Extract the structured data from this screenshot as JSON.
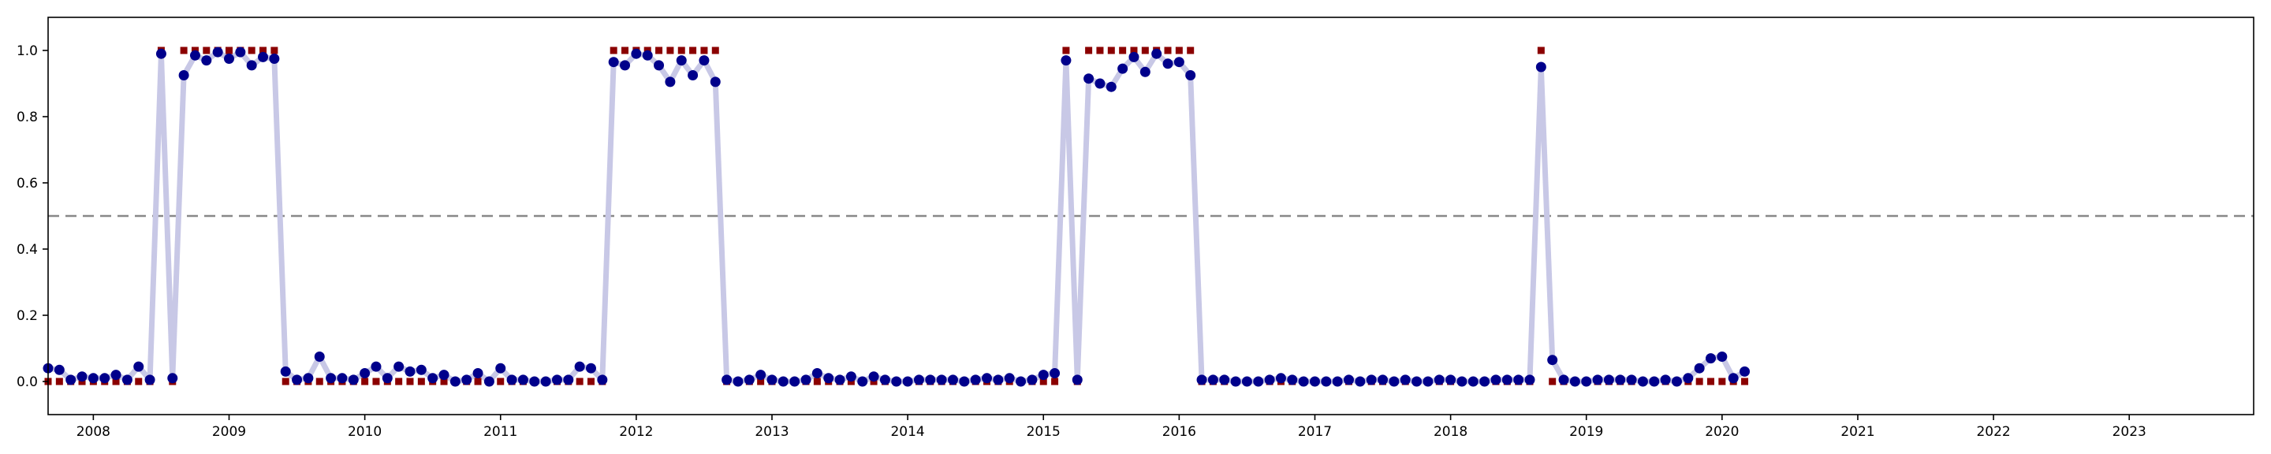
{
  "chart_data": {
    "type": "scatter",
    "title": "",
    "xlabel": "",
    "ylabel": "",
    "x_start": "2007-09",
    "x_interval": "monthly",
    "xlim": [
      "2007-09",
      "2023-12"
    ],
    "ylim": [
      -0.1,
      1.1
    ],
    "x_ticks": [
      "2008",
      "2009",
      "2010",
      "2011",
      "2012",
      "2013",
      "2014",
      "2015",
      "2016",
      "2017",
      "2018",
      "2019",
      "2020",
      "2021",
      "2022",
      "2023"
    ],
    "y_ticks": [
      "0.0",
      "0.2",
      "0.4",
      "0.6",
      "0.8",
      "1.0"
    ],
    "threshold": 0.5,
    "grid": false,
    "legend": "none",
    "colors": {
      "probability_line": "#c8c8e6",
      "probability_points": "#00008b",
      "labels": "#8b0000",
      "threshold": "#888888"
    },
    "series": [
      {
        "values": [
          0.04,
          0.035,
          0.005,
          0.015,
          0.01,
          0.01,
          0.02,
          0.005,
          0.045,
          0.005,
          0.99,
          0.01,
          0.925,
          0.985,
          0.97,
          0.995,
          0.975,
          0.995,
          0.955,
          0.98,
          0.975,
          0.03,
          0.005,
          0.01,
          0.075,
          0.01,
          0.01,
          0.005,
          0.025,
          0.045,
          0.01,
          0.045,
          0.03,
          0.035,
          0.01,
          0.02,
          0.0,
          0.005,
          0.025,
          0.0,
          0.04,
          0.005,
          0.005,
          0.0,
          0.0,
          0.005,
          0.005,
          0.045,
          0.04,
          0.005,
          0.965,
          0.955,
          0.99,
          0.985,
          0.955,
          0.905,
          0.97,
          0.925,
          0.97,
          0.905,
          0.005,
          0.0,
          0.005,
          0.02,
          0.005,
          0.0,
          0.0,
          0.005,
          0.025,
          0.01,
          0.005,
          0.015,
          0.0,
          0.015,
          0.005,
          0.0,
          0.0,
          0.005,
          0.005,
          0.005,
          0.005,
          0.0,
          0.005,
          0.01,
          0.005,
          0.01,
          0.0,
          0.005,
          0.02,
          0.025,
          0.97,
          0.005,
          0.915,
          0.9,
          0.89,
          0.945,
          0.98,
          0.935,
          0.99,
          0.96,
          0.965,
          0.925,
          0.005,
          0.005,
          0.005,
          0.0,
          0.0,
          0.0,
          0.005,
          0.01,
          0.005,
          0.0,
          0.0,
          0.0,
          0.0,
          0.005,
          0.0,
          0.005,
          0.005,
          0.0,
          0.005,
          0.0,
          0.0,
          0.005,
          0.005,
          0.0,
          0.0,
          0.0,
          0.005,
          0.005,
          0.005,
          0.005,
          0.95,
          0.065,
          0.005,
          0.0,
          0.0,
          0.005,
          0.005,
          0.005,
          0.005,
          0.0,
          0.0,
          0.005,
          0.0,
          0.01,
          0.04,
          0.07,
          0.075,
          0.01,
          0.03
        ]
      },
      {
        "values": [
          0,
          0,
          0,
          0,
          0,
          0,
          0,
          0,
          0,
          0,
          1,
          0,
          1,
          1,
          1,
          1,
          1,
          1,
          1,
          1,
          1,
          0,
          0,
          0,
          0,
          0,
          0,
          0,
          0,
          0,
          0,
          0,
          0,
          0,
          0,
          0,
          0,
          0,
          0,
          0,
          0,
          0,
          0,
          0,
          0,
          0,
          0,
          0,
          0,
          0,
          1,
          1,
          1,
          1,
          1,
          1,
          1,
          1,
          1,
          1,
          0,
          0,
          0,
          0,
          0,
          0,
          0,
          0,
          0,
          0,
          0,
          0,
          0,
          0,
          0,
          0,
          0,
          0,
          0,
          0,
          0,
          0,
          0,
          0,
          0,
          0,
          0,
          0,
          0,
          0,
          1,
          0,
          1,
          1,
          1,
          1,
          1,
          1,
          1,
          1,
          1,
          1,
          0,
          0,
          0,
          0,
          0,
          0,
          0,
          0,
          0,
          0,
          0,
          0,
          0,
          0,
          0,
          0,
          0,
          0,
          0,
          0,
          0,
          0,
          0,
          0,
          0,
          0,
          0,
          0,
          0,
          0,
          1,
          0,
          0,
          0,
          0,
          0,
          0,
          0,
          0,
          0,
          0,
          0,
          0,
          0,
          0,
          0,
          0,
          0,
          0
        ]
      }
    ]
  }
}
